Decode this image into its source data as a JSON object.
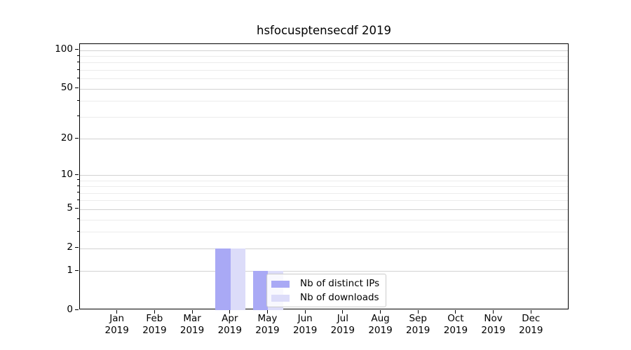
{
  "chart_data": {
    "type": "bar",
    "title": "hsfocusptensecdf 2019",
    "xlabel": "",
    "ylabel": "",
    "x_tick_months": [
      "Jan",
      "Feb",
      "Mar",
      "Apr",
      "May",
      "Jun",
      "Jul",
      "Aug",
      "Sep",
      "Oct",
      "Nov",
      "Dec"
    ],
    "x_tick_year": "2019",
    "categories": [
      "Jan 2019",
      "Feb 2019",
      "Mar 2019",
      "Apr 2019",
      "May 2019",
      "Jun 2019",
      "Jul 2019",
      "Aug 2019",
      "Sep 2019",
      "Oct 2019",
      "Nov 2019",
      "Dec 2019"
    ],
    "series": [
      {
        "name": "Nb of distinct IPs",
        "color": "#a9a9f5",
        "values": [
          0,
          0,
          0,
          2,
          1,
          0,
          0,
          0,
          0,
          0,
          0,
          0
        ]
      },
      {
        "name": "Nb of downloads",
        "color": "#dcdcf9",
        "values": [
          0,
          0,
          0,
          2,
          1,
          0,
          0,
          0,
          0,
          0,
          0,
          0
        ]
      }
    ],
    "yscale": "log10(1+y) symlog-like",
    "ylim": [
      0,
      112
    ],
    "yticks_major": [
      0,
      1,
      2,
      5,
      10,
      20,
      50,
      100
    ],
    "yticks_minor": [
      3,
      4,
      6,
      7,
      8,
      9,
      30,
      40,
      60,
      70,
      80,
      90
    ],
    "grid": "horizontal, major and minor",
    "legend": {
      "labels": [
        "Nb of distinct IPs",
        "Nb of downloads"
      ],
      "position": "lower center, inside axes, overlapping May bar"
    }
  },
  "colors": {
    "bar_distinct_ips": "#a9a9f5",
    "bar_downloads": "#dcdcf9",
    "grid_major": "#d2d2d2",
    "grid_minor": "#ececec",
    "axis_spine": "#000000",
    "tick": "#000000",
    "text": "#000000",
    "legend_border": "#cccccc",
    "legend_background": "rgba(255,255,255,0.8)",
    "background": "#ffffff"
  }
}
